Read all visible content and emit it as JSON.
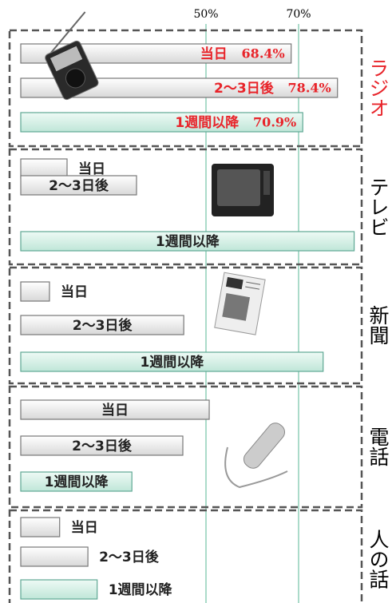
{
  "chart_data": {
    "type": "bar",
    "categories": [
      "ラジオ",
      "テレビ",
      "新聞",
      "電話",
      "人の話"
    ],
    "series": [
      {
        "name": "当日",
        "color": "#d8d8d8",
        "values": [
          68.4,
          20,
          16.2,
          50.7,
          18.4
        ],
        "value_labels": [
          "68.4%",
          null,
          null,
          null,
          null
        ]
      },
      {
        "name": "2～3日後",
        "color": "#d8d8d8",
        "values": [
          78.4,
          35,
          45.2,
          45,
          24.5
        ],
        "value_labels": [
          "78.4%",
          null,
          null,
          null,
          null
        ]
      },
      {
        "name": "1週間以降",
        "color": "#bfe6d8",
        "values": [
          70.9,
          82,
          75.3,
          34,
          26.5
        ],
        "value_labels": [
          "70.9%",
          null,
          null,
          null,
          null
        ]
      }
    ],
    "xlim": [
      10,
      90
    ],
    "xticks": [
      {
        "value": 50,
        "label": "50%"
      },
      {
        "value": 70,
        "label": "70%"
      }
    ],
    "grid": true
  }
}
